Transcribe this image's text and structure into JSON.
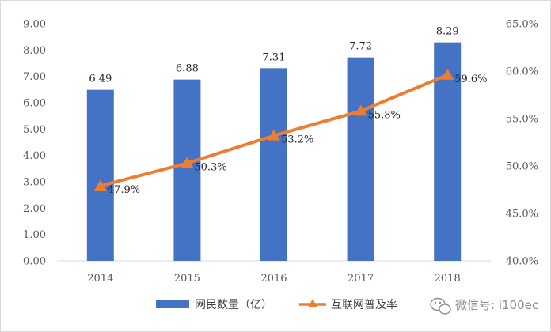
{
  "chart_data": {
    "type": "bar",
    "categories": [
      "2014",
      "2015",
      "2016",
      "2017",
      "2018"
    ],
    "series": [
      {
        "name": "网民数量（亿）",
        "type": "bar",
        "axis": "left",
        "values": [
          6.49,
          6.88,
          7.31,
          7.72,
          8.29
        ],
        "labels": [
          "6.49",
          "6.88",
          "7.31",
          "7.72",
          "8.29"
        ],
        "color": "#4472c4"
      },
      {
        "name": "互联网普及率",
        "type": "line",
        "axis": "right",
        "values": [
          47.9,
          50.3,
          53.2,
          55.8,
          59.6
        ],
        "labels": [
          "47.9%",
          "50.3%",
          "53.2%",
          "55.8%",
          "59.6%"
        ],
        "color": "#ed7d31",
        "marker": "triangle"
      }
    ],
    "left_axis": {
      "ylim": [
        0,
        9
      ],
      "ticks": [
        "0.00",
        "1.00",
        "2.00",
        "3.00",
        "4.00",
        "5.00",
        "6.00",
        "7.00",
        "8.00",
        "9.00"
      ]
    },
    "right_axis": {
      "ylim": [
        40,
        65
      ],
      "unit": "%",
      "ticks": [
        "40.0%",
        "45.0%",
        "50.0%",
        "55.0%",
        "60.0%",
        "65.0%"
      ]
    },
    "grid": false,
    "legend": "bottom-center"
  },
  "watermark": {
    "icon": "wechat-icon",
    "text": "微信号: i100ec"
  }
}
